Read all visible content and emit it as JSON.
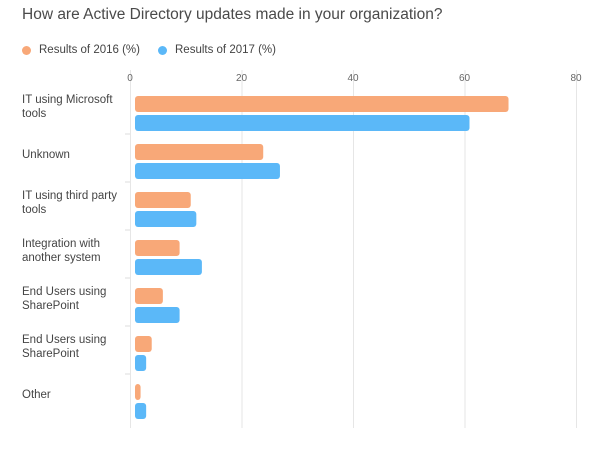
{
  "chart_data": {
    "type": "bar",
    "orientation": "horizontal",
    "title": "How are Active Directory updates made in your organization?",
    "categories": [
      "IT using Microsoft tools",
      "Unknown",
      "IT using third party tools",
      "Integration with another system",
      "End Users using SharePoint",
      "End Users using SharePoint",
      "Other"
    ],
    "series": [
      {
        "name": "Results of 2016 (%)",
        "color": "#f8a878",
        "values": [
          67,
          23,
          10,
          8,
          5,
          3,
          1
        ]
      },
      {
        "name": "Results of 2017 (%)",
        "color": "#5bb8f8",
        "values": [
          60,
          26,
          11,
          12,
          8,
          2,
          2
        ]
      }
    ],
    "xlim": [
      0,
      80
    ],
    "xticks": [
      0,
      20,
      40,
      60,
      80
    ],
    "tick_labels": [
      "0",
      "20",
      "40",
      "60",
      "80"
    ],
    "grid": true,
    "legend_position": "top-left",
    "xlabel": "",
    "ylabel": ""
  }
}
